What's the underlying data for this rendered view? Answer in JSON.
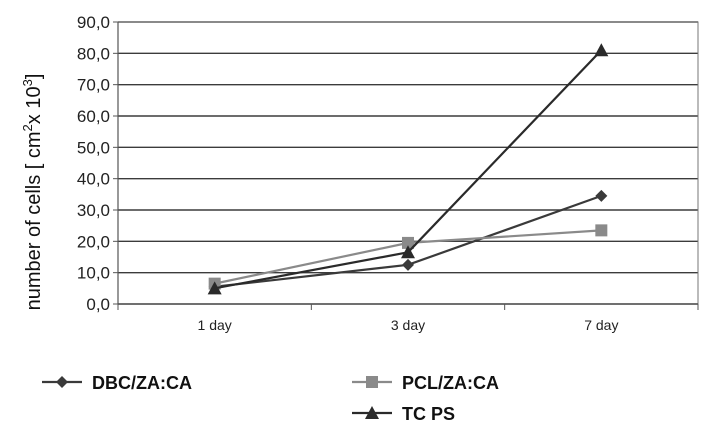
{
  "chart_data": {
    "type": "line",
    "title": "",
    "xlabel": "",
    "ylabel": "number of cells [ cm²x 10³]",
    "ylabel_parts": {
      "main": "number of cells [ cm",
      "sup1": "2",
      "mid": "x 10",
      "sup2": "3",
      "end": "]"
    },
    "categories": [
      "1 day",
      "3 day",
      "7 day"
    ],
    "ylim": [
      0,
      90
    ],
    "y_ticks": [
      "0,0",
      "10,0",
      "20,0",
      "30,0",
      "40,0",
      "50,0",
      "60,0",
      "70,0",
      "80,0",
      "90,0"
    ],
    "grid": true,
    "legend_position": "bottom",
    "series": [
      {
        "name": "DBC/ZA:CA",
        "marker": "diamond",
        "color": "#3a3a3a",
        "values": [
          5.5,
          12.5,
          34.5
        ]
      },
      {
        "name": "PCL/ZA:CA",
        "marker": "square",
        "color": "#8a8a8a",
        "values": [
          6.5,
          19.5,
          23.5
        ]
      },
      {
        "name": "TC PS",
        "marker": "triangle",
        "color": "#2a2a2a",
        "values": [
          5.0,
          16.5,
          81.0
        ]
      }
    ]
  }
}
